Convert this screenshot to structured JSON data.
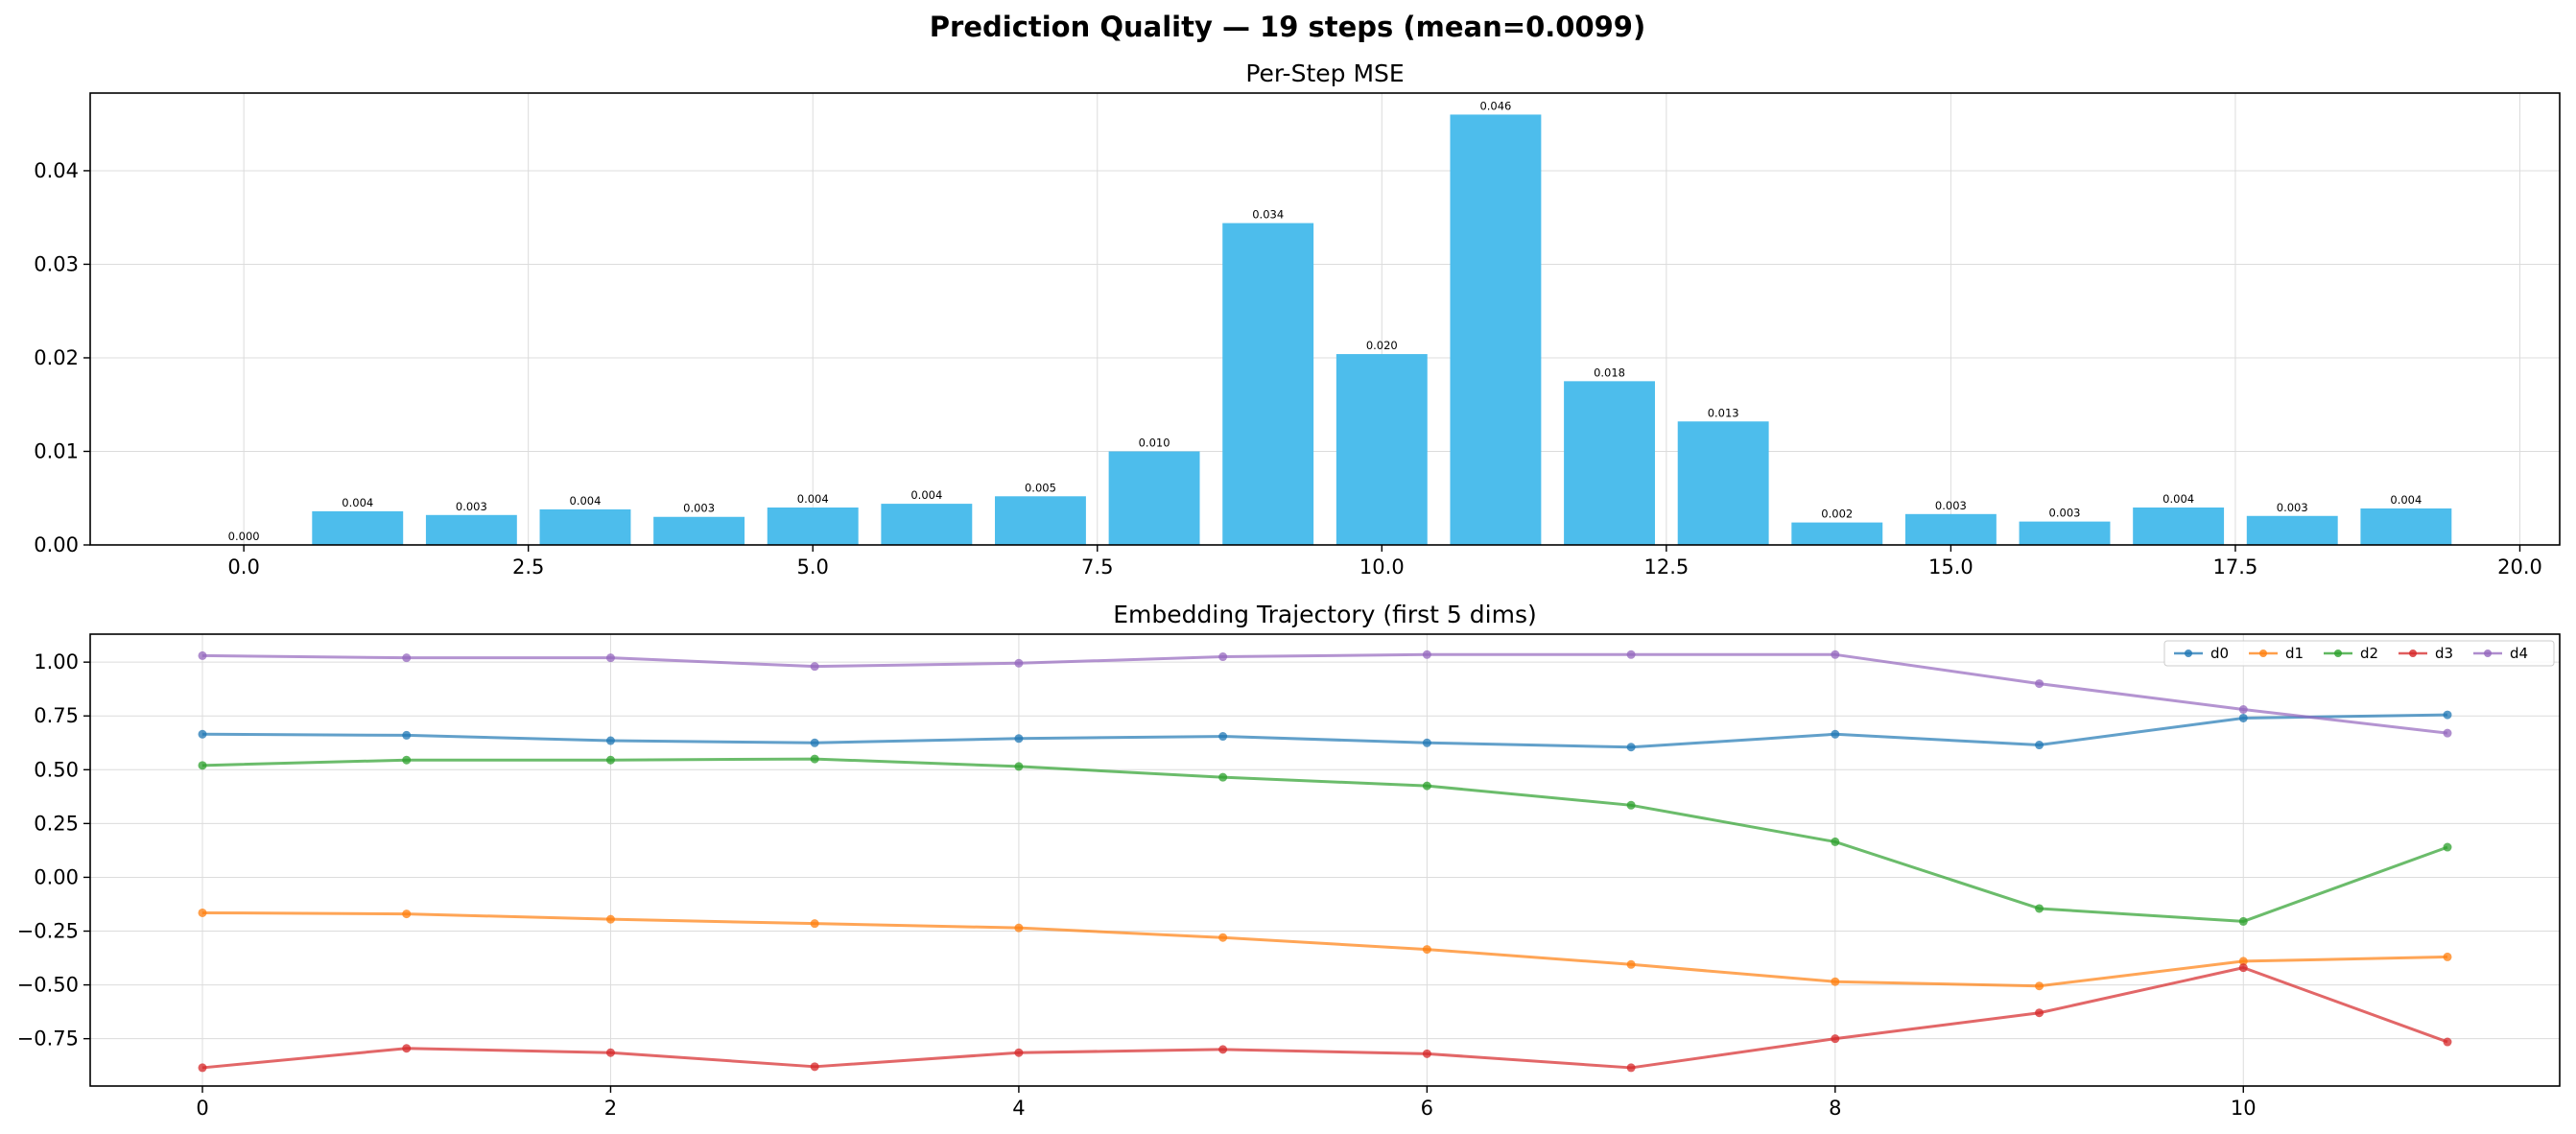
{
  "title": "Prediction Quality — 19 steps (mean=0.0099)",
  "chart_data": [
    {
      "type": "bar",
      "title": "Per-Step MSE",
      "xlabel": "",
      "ylabel": "",
      "x": [
        0,
        1,
        2,
        3,
        4,
        5,
        6,
        7,
        8,
        9,
        10,
        11,
        12,
        13,
        14,
        15,
        16,
        17,
        18,
        19
      ],
      "values": [
        0.0,
        0.0036,
        0.0032,
        0.0038,
        0.003,
        0.004,
        0.0044,
        0.0052,
        0.01,
        0.0344,
        0.0204,
        0.046,
        0.0175,
        0.0132,
        0.0024,
        0.0033,
        0.0025,
        0.004,
        0.0031,
        0.0039
      ],
      "labels": [
        "0.000",
        "0.004",
        "0.003",
        "0.004",
        "0.003",
        "0.004",
        "0.004",
        "0.005",
        "0.010",
        "0.034",
        "0.020",
        "0.046",
        "0.018",
        "0.013",
        "0.002",
        "0.003",
        "0.003",
        "0.004",
        "0.003",
        "0.004"
      ],
      "xlim": [
        -1.35,
        20.35
      ],
      "ylim": [
        0,
        0.0483
      ],
      "xticks": [
        0.0,
        2.5,
        5.0,
        7.5,
        10.0,
        12.5,
        15.0,
        17.5,
        20.0
      ],
      "xtick_labels": [
        "0.0",
        "2.5",
        "5.0",
        "7.5",
        "10.0",
        "12.5",
        "15.0",
        "17.5",
        "20.0"
      ],
      "yticks": [
        0,
        0.01,
        0.02,
        0.03,
        0.04
      ],
      "ytick_labels": [
        "0.00",
        "0.01",
        "0.02",
        "0.03",
        "0.04"
      ],
      "color": "#4dbdec",
      "grid": true
    },
    {
      "type": "line",
      "title": "Embedding Trajectory (first 5 dims)",
      "xlabel": "",
      "ylabel": "",
      "x": [
        0,
        1,
        2,
        3,
        4,
        5,
        6,
        7,
        8,
        9,
        10,
        11
      ],
      "series": [
        {
          "name": "d0",
          "color": "#1f77b4",
          "values": [
            0.665,
            0.66,
            0.635,
            0.625,
            0.645,
            0.655,
            0.625,
            0.605,
            0.665,
            0.615,
            0.74,
            0.755
          ]
        },
        {
          "name": "d1",
          "color": "#ff7f0e",
          "values": [
            -0.165,
            -0.17,
            -0.195,
            -0.215,
            -0.235,
            -0.28,
            -0.335,
            -0.405,
            -0.485,
            -0.505,
            -0.39,
            -0.37
          ]
        },
        {
          "name": "d2",
          "color": "#2ca02c",
          "values": [
            0.52,
            0.545,
            0.545,
            0.55,
            0.515,
            0.465,
            0.425,
            0.335,
            0.165,
            -0.145,
            -0.205,
            0.14
          ]
        },
        {
          "name": "d3",
          "color": "#d62728",
          "values": [
            -0.885,
            -0.795,
            -0.815,
            -0.88,
            -0.815,
            -0.8,
            -0.82,
            -0.885,
            -0.75,
            -0.63,
            -0.42,
            -0.765
          ]
        },
        {
          "name": "d4",
          "color": "#9467bd",
          "values": [
            1.03,
            1.02,
            1.02,
            0.98,
            0.995,
            1.025,
            1.035,
            1.035,
            1.035,
            0.9,
            0.78,
            0.67
          ]
        }
      ],
      "xlim": [
        -0.55,
        11.55
      ],
      "ylim": [
        -0.97,
        1.13
      ],
      "xticks": [
        0,
        2,
        4,
        6,
        8,
        10
      ],
      "xtick_labels": [
        "0",
        "2",
        "4",
        "6",
        "8",
        "10"
      ],
      "yticks": [
        -0.75,
        -0.5,
        -0.25,
        0.0,
        0.25,
        0.5,
        0.75,
        1.0
      ],
      "ytick_labels": [
        "−0.75",
        "−0.50",
        "−0.25",
        "0.00",
        "0.25",
        "0.50",
        "0.75",
        "1.00"
      ],
      "legend": "top-right",
      "grid": true
    }
  ]
}
